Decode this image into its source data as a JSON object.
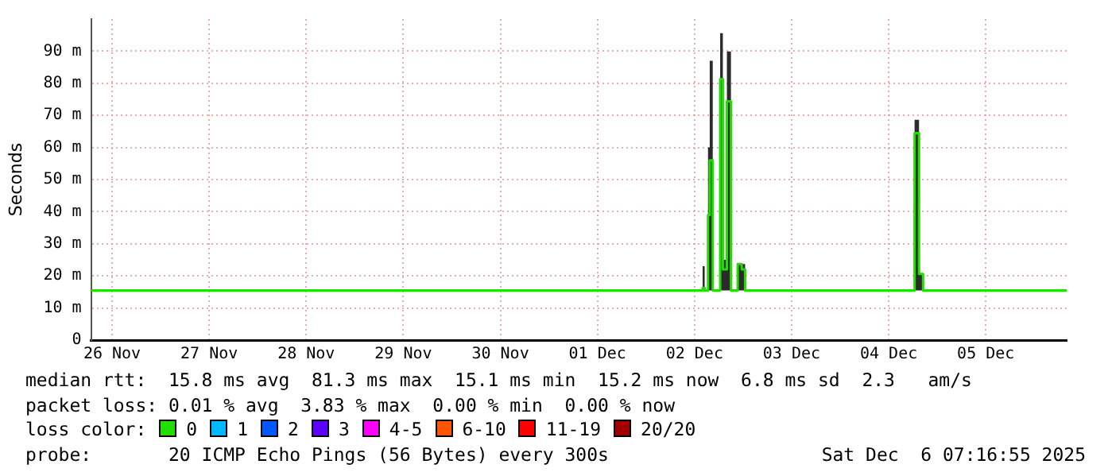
{
  "chart_data": {
    "type": "step",
    "ylabel": "Seconds",
    "legend_title": "loss color:",
    "legend": "bottom",
    "grid": true,
    "x": [
      "2025-11-25T18:48",
      "2025-12-02T01:00",
      "2025-12-02T02:00",
      "2025-12-02T02:30",
      "2025-12-02T03:20",
      "2025-12-02T03:45",
      "2025-12-02T04:30",
      "2025-12-02T06:20",
      "2025-12-02T07:00",
      "2025-12-02T08:00",
      "2025-12-02T09:00",
      "2025-12-02T10:40",
      "2025-12-02T11:40",
      "2025-12-02T12:30",
      "2025-12-04T06:00",
      "2025-12-04T06:24",
      "2025-12-04T07:30",
      "2025-12-04T08:30",
      "2025-12-05T20:00"
    ],
    "series": [
      {
        "name": "0",
        "color": "#22dd00",
        "values": [
          15.5,
          15.5,
          16.3,
          15.5,
          39,
          56,
          15.5,
          81.3,
          22,
          74.4,
          15.5,
          23.7,
          22,
          15.5,
          15.5,
          64.5,
          20.6,
          15.5,
          15.5
        ],
        "lower": [
          15.5,
          15.5,
          15.5,
          15.5,
          15.5,
          15.5,
          15.5,
          15.5,
          15.5,
          15.5,
          15.5,
          15.5,
          15.5,
          15.5,
          15.5,
          15.5,
          15.5,
          15.5,
          15.5
        ],
        "upper": [
          15.5,
          15.5,
          23,
          15.5,
          60,
          87,
          15.5,
          95.6,
          25,
          89.9,
          15.5,
          23.7,
          23.7,
          15.5,
          15.5,
          68.6,
          20.6,
          15.5,
          15.5
        ]
      },
      {
        "name": "1",
        "color": "#00b8ff",
        "values": [
          null,
          null,
          null,
          null,
          null,
          null,
          null,
          null,
          null,
          null,
          null,
          null,
          null,
          null,
          null,
          null,
          null,
          null,
          null
        ]
      },
      {
        "name": "2",
        "color": "#0059ff",
        "values": [
          null,
          null,
          null,
          null,
          null,
          null,
          null,
          null,
          null,
          null,
          null,
          null,
          null,
          null,
          null,
          null,
          null,
          null,
          null
        ]
      },
      {
        "name": "3",
        "color": "#5e00ff",
        "values": [
          null,
          null,
          null,
          null,
          null,
          null,
          null,
          null,
          null,
          null,
          null,
          null,
          null,
          null,
          null,
          null,
          null,
          null,
          null
        ]
      },
      {
        "name": "4-5",
        "color": "#ff00ff",
        "values": [
          null,
          null,
          null,
          null,
          null,
          null,
          null,
          null,
          null,
          null,
          null,
          null,
          null,
          null,
          null,
          null,
          null,
          null,
          null
        ]
      },
      {
        "name": "6-10",
        "color": "#ff5500",
        "values": [
          null,
          null,
          null,
          null,
          null,
          null,
          null,
          null,
          null,
          null,
          null,
          null,
          null,
          null,
          null,
          null,
          null,
          null,
          null
        ]
      },
      {
        "name": "11-19",
        "color": "#ff0000",
        "values": [
          null,
          null,
          null,
          null,
          null,
          null,
          null,
          null,
          null,
          null,
          null,
          null,
          null,
          null,
          null,
          null,
          null,
          null,
          null
        ]
      },
      {
        "name": "20/20",
        "color": "#a10000",
        "values": [
          null,
          null,
          null,
          null,
          null,
          null,
          null,
          null,
          null,
          null,
          null,
          null,
          null,
          null,
          null,
          null,
          null,
          null,
          null
        ]
      }
    ],
    "xlim": [
      "2025-11-25T18:48",
      "2025-12-05T20:00"
    ],
    "xticks": [
      {
        "value": "2025-11-26",
        "label": "26 Nov"
      },
      {
        "value": "2025-11-27",
        "label": "27 Nov"
      },
      {
        "value": "2025-11-28",
        "label": "28 Nov"
      },
      {
        "value": "2025-11-29",
        "label": "29 Nov"
      },
      {
        "value": "2025-11-30",
        "label": "30 Nov"
      },
      {
        "value": "2025-12-01",
        "label": "01 Dec"
      },
      {
        "value": "2025-12-02",
        "label": "02 Dec"
      },
      {
        "value": "2025-12-03",
        "label": "03 Dec"
      },
      {
        "value": "2025-12-04",
        "label": "04 Dec"
      },
      {
        "value": "2025-12-05",
        "label": "05 Dec"
      }
    ],
    "ylim": [
      0,
      100
    ],
    "yticks": [
      0,
      {
        "value": 10,
        "label": "10 m"
      },
      {
        "value": 20,
        "label": "20 m"
      },
      {
        "value": 30,
        "label": "30 m"
      },
      {
        "value": 40,
        "label": "40 m"
      },
      {
        "value": 50,
        "label": "50 m"
      },
      {
        "value": 60,
        "label": "60 m"
      },
      {
        "value": 70,
        "label": "70 m"
      },
      {
        "value": 80,
        "label": "80 m"
      },
      {
        "value": 90,
        "label": "90 m"
      }
    ],
    "annotations": [
      "median rtt:  15.8 ms avg  81.3 ms max  15.1 ms min  15.2 ms now  6.8 ms sd  2.3   am/s",
      "packet loss: 0.01 % avg  3.83 % max  0.00 % min  0.00 % now",
      "probe:       20 ICMP Echo Pings (56 Bytes) every 300s",
      "Sat Dec  6 07:16:55 2025"
    ]
  }
}
